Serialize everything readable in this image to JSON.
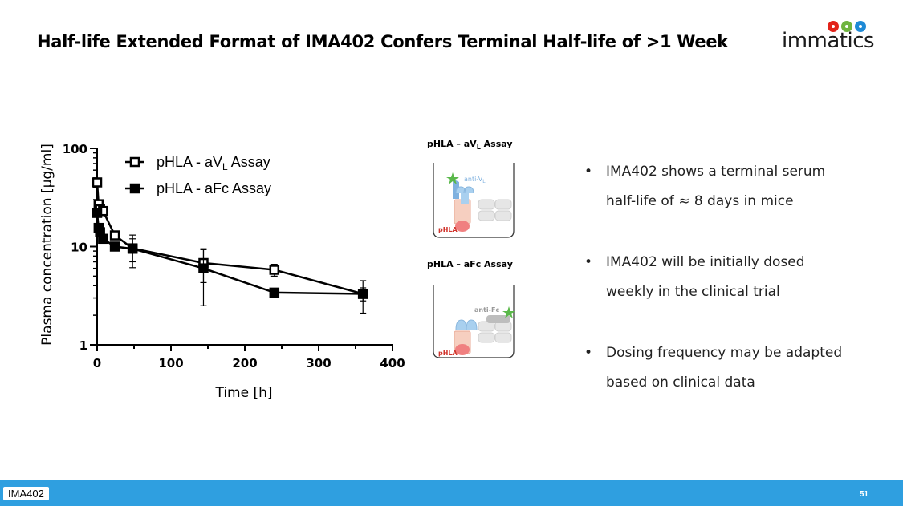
{
  "slide": {
    "title": "Half-life Extended Format of IMA402 Confers Terminal Half-life of >1 Week",
    "logo_text": "immatics",
    "footer_tag": "IMA402",
    "page_number": "51"
  },
  "chart_data": {
    "type": "scatter",
    "ylabel": "Plasma concentration [µg/ml]",
    "xlabel": "Time [h]",
    "xlim": [
      0,
      400
    ],
    "ylim": [
      1,
      100
    ],
    "yscale": "log",
    "x_ticks": [
      "0",
      "100",
      "200",
      "300",
      "400"
    ],
    "y_ticks": [
      "1",
      "10",
      "100"
    ],
    "legend_position": "top-left",
    "series": [
      {
        "name": "pHLA - aVL Assay",
        "marker": "open-square",
        "x": [
          0,
          2,
          4,
          8,
          24,
          48,
          144,
          240,
          360
        ],
        "y": [
          45,
          27,
          24,
          23,
          13,
          9.6,
          6.8,
          5.8,
          3.3
        ],
        "err": [
          2,
          2,
          2,
          2,
          1,
          3.5,
          2.5,
          0.8,
          1.2
        ]
      },
      {
        "name": "pHLA - aFc Assay",
        "marker": "filled-square",
        "x": [
          0,
          2,
          4,
          8,
          24,
          48,
          144,
          240,
          360
        ],
        "y": [
          22,
          15.5,
          14,
          12,
          10,
          9.5,
          6,
          3.4,
          3.3
        ],
        "err": [
          1.5,
          1,
          1,
          0.8,
          0.8,
          2.5,
          3.5,
          0.3,
          0.5
        ]
      }
    ]
  },
  "assays": {
    "vl": {
      "title_main": "pHLA – aV",
      "title_sub": "L",
      "title_end": " Assay",
      "label_anti_main": "anti-V",
      "label_anti_sub": "L",
      "label_phla": "pHLA"
    },
    "fc": {
      "title": "pHLA – aFc Assay",
      "label_anti": "anti-Fc",
      "label_phla": "pHLA"
    }
  },
  "bullets": [
    {
      "line1": "IMA402 shows a terminal serum",
      "line2": "half-life of ≈ 8 days in mice"
    },
    {
      "line1": "IMA402 will be initially dosed",
      "line2": "weekly in the clinical trial"
    },
    {
      "line1": "Dosing frequency may be adapted",
      "line2": "based on clinical data"
    }
  ],
  "colors": {
    "footer_bar": "#2f9fe0",
    "star": "#5ab84a",
    "phla_red": "#f08080",
    "antibody_blue": "#a9d0ef",
    "antibody_dark": "#7fb1df",
    "fc_gray": "#bdbdbd",
    "logo_red": "#e2231a",
    "logo_green": "#6fb43f",
    "logo_blue": "#1e8ad6"
  }
}
